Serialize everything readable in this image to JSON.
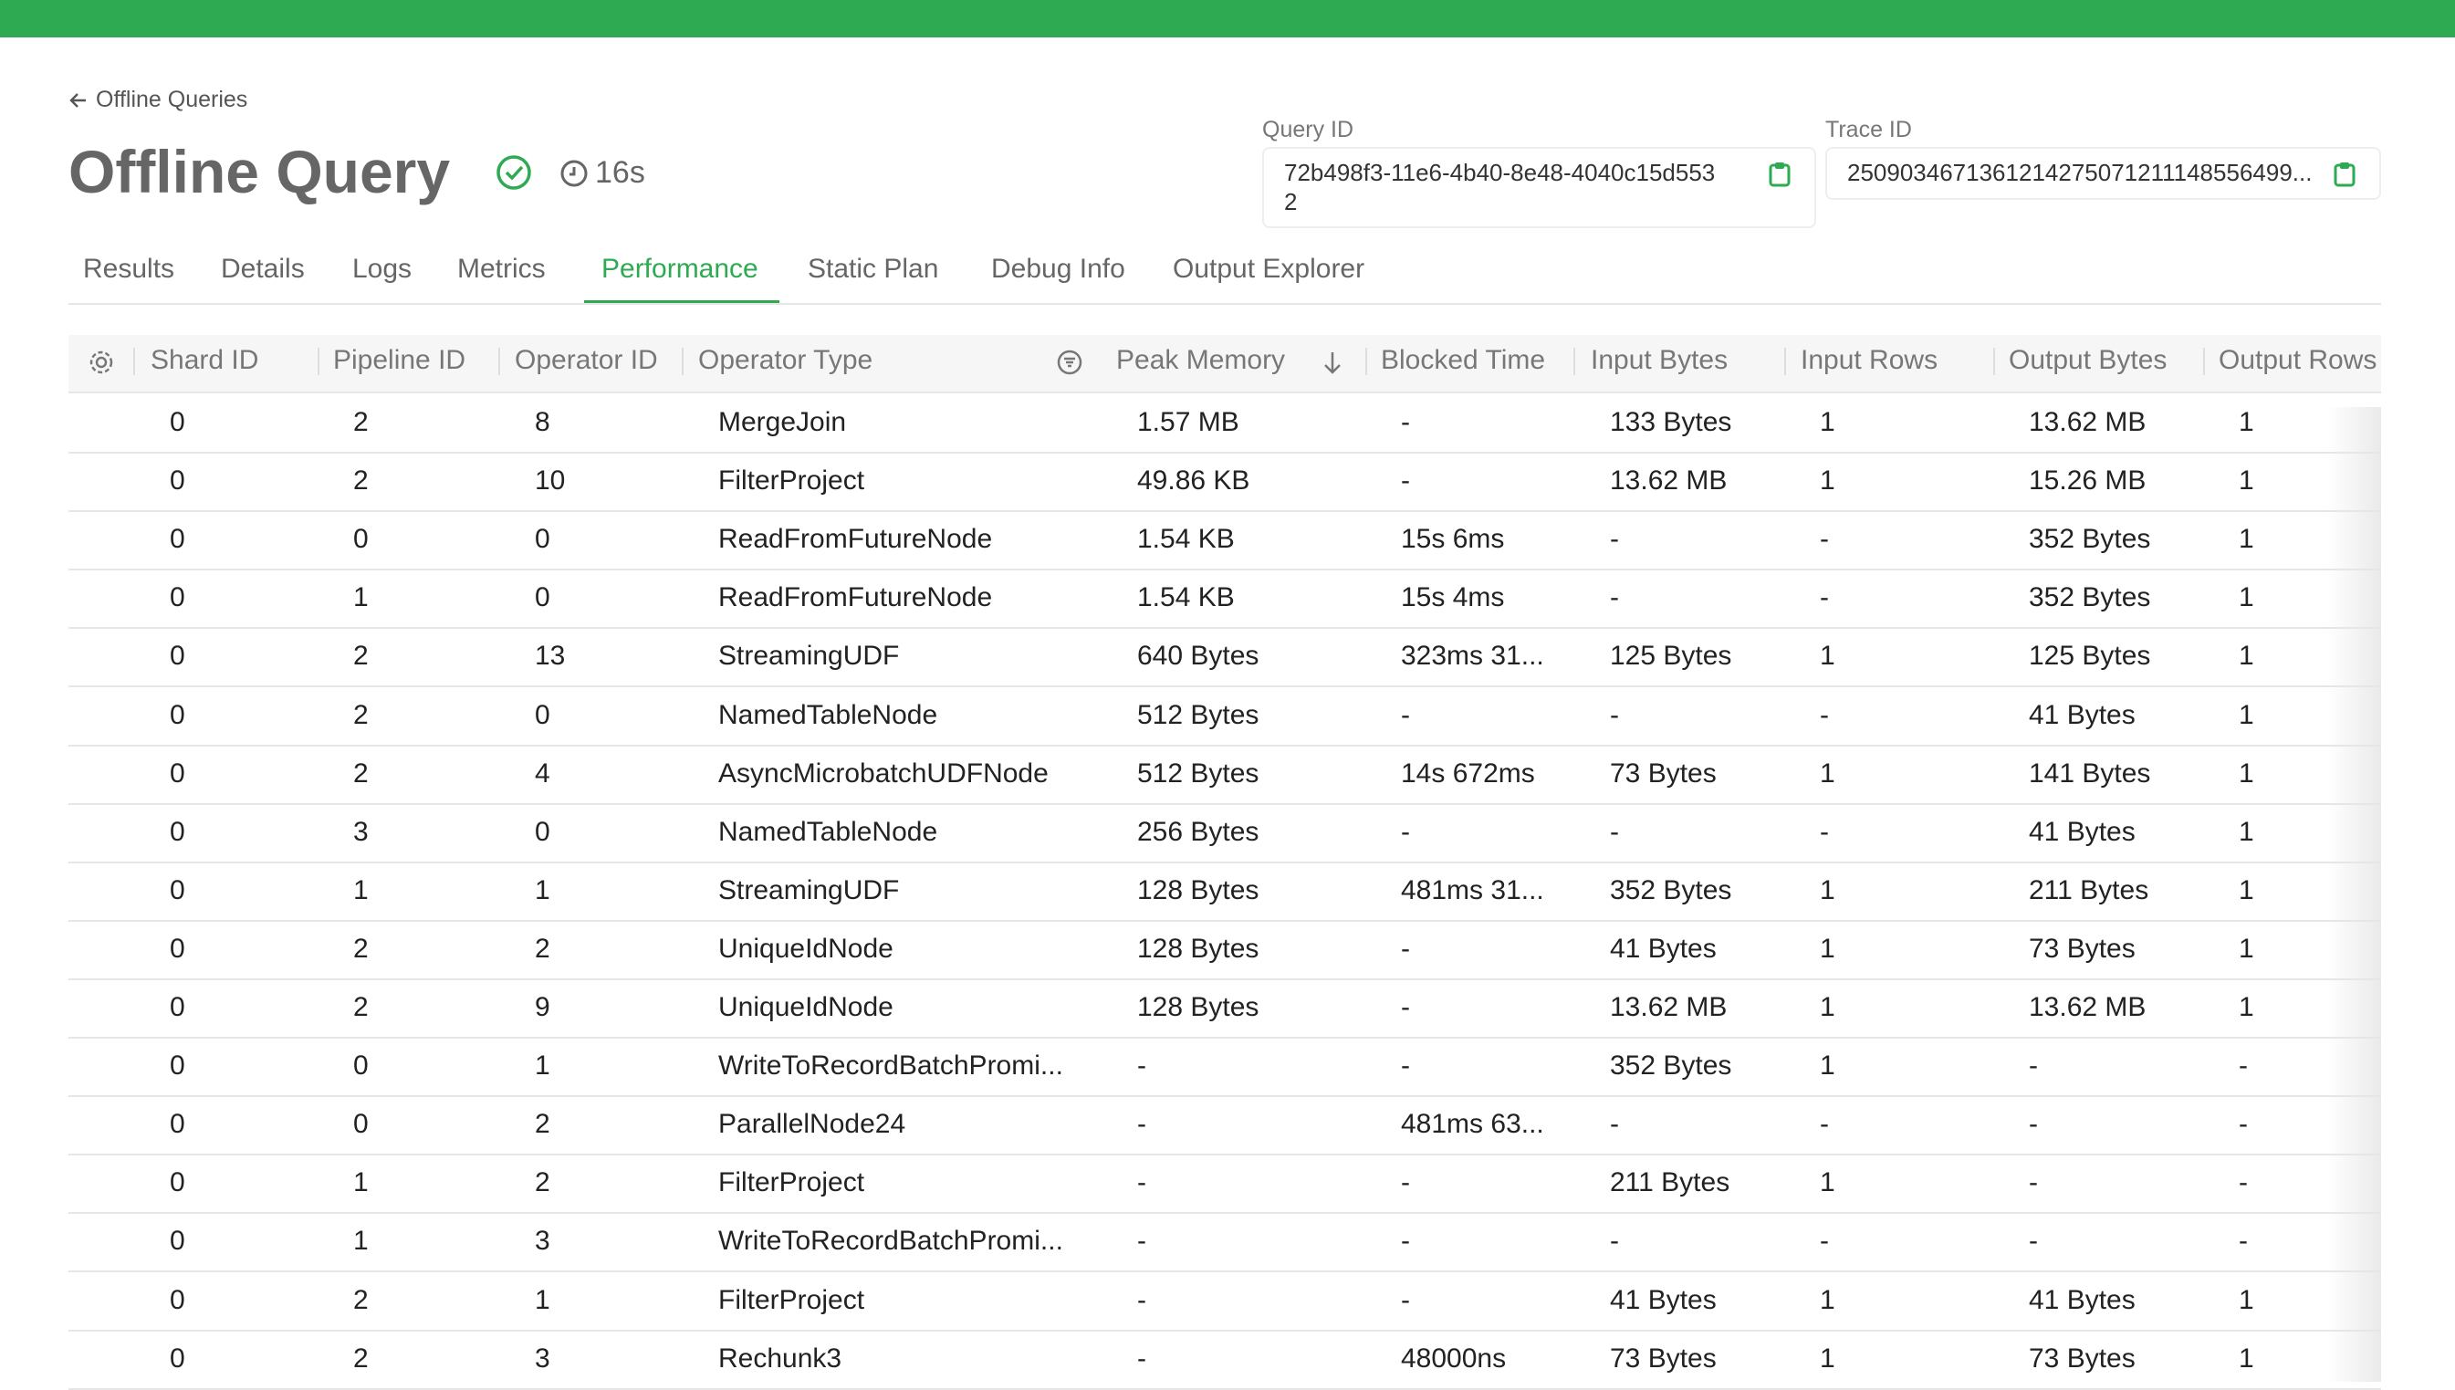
{
  "back_link": "Offline Queries",
  "header": {
    "title": "Offline Query",
    "duration": "16s",
    "query_id": {
      "label": "Query ID",
      "value": "72b498f3-11e6-4b40-8e48-4040c15d5532"
    },
    "trace_id": {
      "label": "Trace ID",
      "value": "2509034671361214275071211148556499..."
    }
  },
  "tabs": [
    "Results",
    "Details",
    "Logs",
    "Metrics",
    "Performance",
    "Static Plan",
    "Debug Info",
    "Output Explorer"
  ],
  "active_tab": 4,
  "table": {
    "columns": [
      "Shard ID",
      "Pipeline ID",
      "Operator ID",
      "Operator Type",
      "Peak Memory",
      "Blocked Time",
      "Input Bytes",
      "Input Rows",
      "Output Bytes",
      "Output Rows"
    ],
    "rows": [
      [
        "0",
        "2",
        "8",
        "MergeJoin",
        "1.57 MB",
        "-",
        "133 Bytes",
        "1",
        "13.62 MB",
        "1"
      ],
      [
        "0",
        "2",
        "10",
        "FilterProject",
        "49.86 KB",
        "-",
        "13.62 MB",
        "1",
        "15.26 MB",
        "1"
      ],
      [
        "0",
        "0",
        "0",
        "ReadFromFutureNode",
        "1.54 KB",
        "15s 6ms",
        "-",
        "-",
        "352 Bytes",
        "1"
      ],
      [
        "0",
        "1",
        "0",
        "ReadFromFutureNode",
        "1.54 KB",
        "15s 4ms",
        "-",
        "-",
        "352 Bytes",
        "1"
      ],
      [
        "0",
        "2",
        "13",
        "StreamingUDF",
        "640 Bytes",
        "323ms 31...",
        "125 Bytes",
        "1",
        "125 Bytes",
        "1"
      ],
      [
        "0",
        "2",
        "0",
        "NamedTableNode",
        "512 Bytes",
        "-",
        "-",
        "-",
        "41 Bytes",
        "1"
      ],
      [
        "0",
        "2",
        "4",
        "AsyncMicrobatchUDFNode",
        "512 Bytes",
        "14s 672ms",
        "73 Bytes",
        "1",
        "141 Bytes",
        "1"
      ],
      [
        "0",
        "3",
        "0",
        "NamedTableNode",
        "256 Bytes",
        "-",
        "-",
        "-",
        "41 Bytes",
        "1"
      ],
      [
        "0",
        "1",
        "1",
        "StreamingUDF",
        "128 Bytes",
        "481ms 31...",
        "352 Bytes",
        "1",
        "211 Bytes",
        "1"
      ],
      [
        "0",
        "2",
        "2",
        "UniqueIdNode",
        "128 Bytes",
        "-",
        "41 Bytes",
        "1",
        "73 Bytes",
        "1"
      ],
      [
        "0",
        "2",
        "9",
        "UniqueIdNode",
        "128 Bytes",
        "-",
        "13.62 MB",
        "1",
        "13.62 MB",
        "1"
      ],
      [
        "0",
        "0",
        "1",
        "WriteToRecordBatchPromi...",
        "-",
        "-",
        "352 Bytes",
        "1",
        "-",
        "-"
      ],
      [
        "0",
        "0",
        "2",
        "ParallelNode24",
        "-",
        "481ms 63...",
        "-",
        "-",
        "-",
        "-"
      ],
      [
        "0",
        "1",
        "2",
        "FilterProject",
        "-",
        "-",
        "211 Bytes",
        "1",
        "-",
        "-"
      ],
      [
        "0",
        "1",
        "3",
        "WriteToRecordBatchPromi...",
        "-",
        "-",
        "-",
        "-",
        "-",
        "-"
      ],
      [
        "0",
        "2",
        "1",
        "FilterProject",
        "-",
        "-",
        "41 Bytes",
        "1",
        "41 Bytes",
        "1"
      ],
      [
        "0",
        "2",
        "3",
        "Rechunk3",
        "-",
        "48000ns",
        "73 Bytes",
        "1",
        "73 Bytes",
        "1"
      ]
    ]
  }
}
